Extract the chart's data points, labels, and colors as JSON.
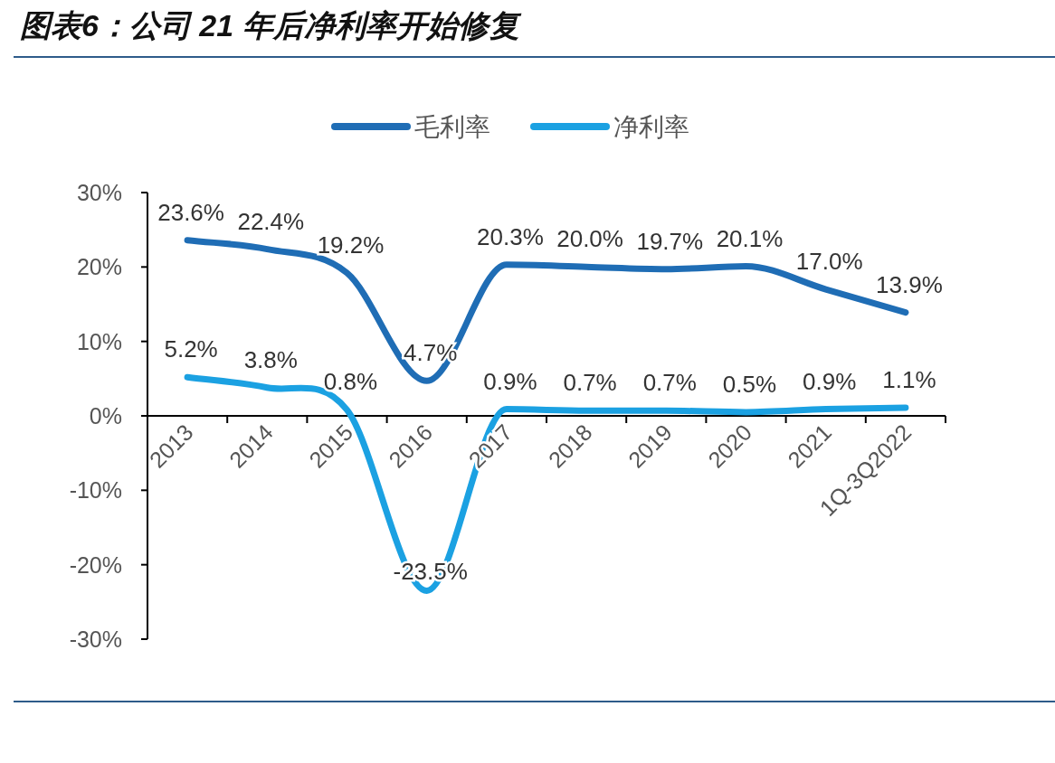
{
  "chart_data": {
    "type": "line",
    "title": "图表6：公司 21 年后净利率开始修复",
    "categories": [
      "2013",
      "2014",
      "2015",
      "2016",
      "2017",
      "2018",
      "2019",
      "2020",
      "2021",
      "1Q-3Q2022"
    ],
    "series": [
      {
        "name": "毛利率",
        "color": "#1f6db5",
        "values": [
          23.6,
          22.4,
          19.2,
          4.7,
          20.3,
          20.0,
          19.7,
          20.1,
          17.0,
          13.9
        ],
        "value_labels": [
          "23.6%",
          "22.4%",
          "19.2%",
          "4.7%",
          "20.3%",
          "20.0%",
          "19.7%",
          "20.1%",
          "17.0%",
          "13.9%"
        ]
      },
      {
        "name": "净利率",
        "color": "#1ba1e2",
        "values": [
          5.2,
          3.8,
          0.8,
          -23.5,
          0.9,
          0.7,
          0.7,
          0.5,
          0.9,
          1.1
        ],
        "value_labels": [
          "5.2%",
          "3.8%",
          "0.8%",
          "-23.5%",
          "0.9%",
          "0.7%",
          "0.7%",
          "0.5%",
          "0.9%",
          "1.1%"
        ]
      }
    ],
    "ylim": [
      -30,
      30
    ],
    "yticks": [
      {
        "value": -30,
        "label": "-30%"
      },
      {
        "value": -20,
        "label": "-20%"
      },
      {
        "value": -10,
        "label": "-10%"
      },
      {
        "value": 0,
        "label": "0%"
      },
      {
        "value": 10,
        "label": "10%"
      },
      {
        "value": 20,
        "label": "20%"
      },
      {
        "value": 30,
        "label": "30%"
      }
    ],
    "legend": "top",
    "grid": false,
    "marker": "none",
    "line_style": "solid"
  }
}
